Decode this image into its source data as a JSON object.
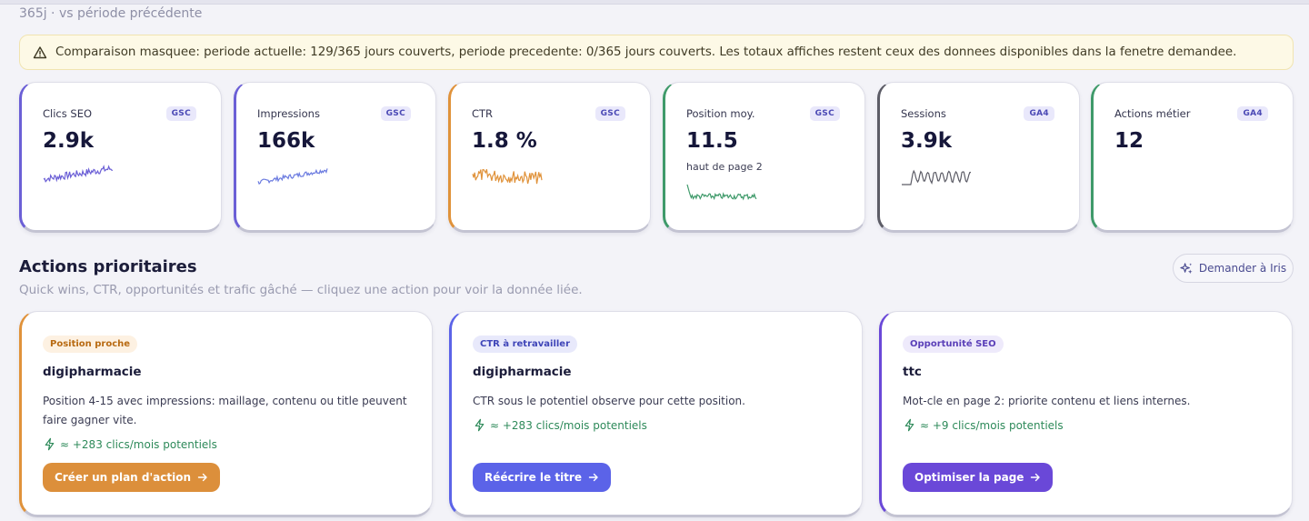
{
  "header": {
    "period": "365j · vs période précédente"
  },
  "warning": {
    "icon": "warning-triangle-icon",
    "text": "Comparaison masquee: periode actuelle: 129/365 jours couverts, periode precedente: 0/365 jours couverts. Les totaux affiches restent ceux des donnees disponibles dans la fenetre demandee."
  },
  "kpis": [
    {
      "label": "Clics SEO",
      "badge": "GSC",
      "value": "2.9k",
      "sub": "",
      "color": "#6b5fd6"
    },
    {
      "label": "Impressions",
      "badge": "GSC",
      "value": "166k",
      "sub": "",
      "color": "#6b5fd6"
    },
    {
      "label": "CTR",
      "badge": "GSC",
      "value": "1.8 %",
      "sub": "",
      "color": "#e0923a"
    },
    {
      "label": "Position moy.",
      "badge": "GSC",
      "value": "11.5",
      "sub": "haut de page 2",
      "color": "#3f9a6a"
    },
    {
      "label": "Sessions",
      "badge": "GA4",
      "value": "3.9k",
      "sub": "",
      "color": "#5c5c66"
    },
    {
      "label": "Actions métier",
      "badge": "GA4",
      "value": "12",
      "sub": "",
      "color": "#3f9a6a"
    }
  ],
  "actions_section": {
    "title": "Actions prioritaires",
    "subtitle": "Quick wins, CTR, opportunités et trafic gâché — cliquez une action pour voir la donnée liée.",
    "ask_button": "Demander à Iris"
  },
  "actions": [
    {
      "tag": "Position proche",
      "name": "digipharmacie",
      "desc": "Position 4-15 avec impressions: maillage, contenu ou title peuvent faire gagner vite.",
      "gain": "≈ +283 clics/mois potentiels",
      "cta": "Créer un plan d'action",
      "accent": "#e0923a"
    },
    {
      "tag": "CTR à retravailler",
      "name": "digipharmacie",
      "desc": "CTR sous le potentiel observe pour cette position.",
      "gain": "≈ +283 clics/mois potentiels",
      "cta": "Réécrire le titre",
      "accent": "#5b63e8"
    },
    {
      "tag": "Opportunité SEO",
      "name": "ttc",
      "desc": "Mot-cle en page 2: priorite contenu et liens internes.",
      "gain": "≈ +9 clics/mois potentiels",
      "cta": "Optimiser la page",
      "accent": "#6a48d8"
    }
  ]
}
